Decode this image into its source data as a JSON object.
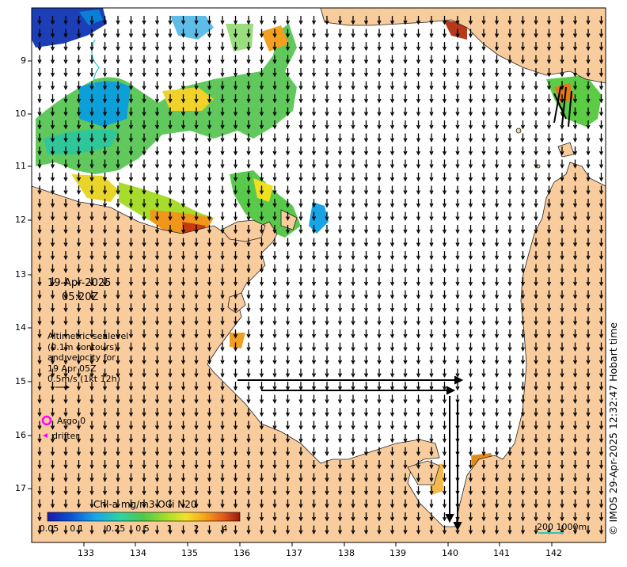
{
  "map": {
    "date": "19-Apr-2025",
    "time": "05:20Z",
    "legend_note_lines": [
      "Altimetric sealevel",
      "(0.1m contours)",
      "and velocity for",
      "19 Apr 05Z",
      "0.5m/s (1kt 12h)"
    ],
    "argo_label": "Argo 0",
    "drifter_label": "drifter",
    "colorbar_title": "Chl-a mg/m3 OCi N20",
    "colorbar_ticks": [
      "0.05",
      "0.1",
      "0.25",
      "0.5",
      "1",
      "2",
      "4"
    ],
    "scale_label": "200  1000m",
    "credit": "© IMOS 29-Apr-2025 12:32:47 Hobart time",
    "lon_ticks": [
      "133",
      "134",
      "135",
      "136",
      "137",
      "138",
      "139",
      "140",
      "141",
      "142"
    ],
    "lat_ticks": [
      "9",
      "10",
      "11",
      "12",
      "13",
      "14",
      "15",
      "16",
      "17"
    ],
    "colors": {
      "land": "#f9cc9d",
      "ocean": "#ffffff",
      "argo": "#ff00ff",
      "drifter": "#ff00ff",
      "scale_bar": "#2ec4b6"
    }
  }
}
